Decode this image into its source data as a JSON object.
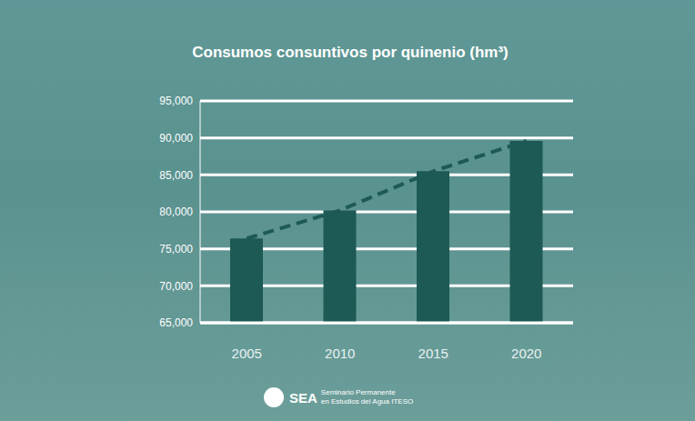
{
  "chart_data": {
    "type": "bar",
    "title": "Consumos consuntivos por quinenio (hm³)",
    "categories": [
      "2005",
      "2010",
      "2015",
      "2020"
    ],
    "series": [
      {
        "type": "bar",
        "color": "#1d5a55",
        "values": [
          76400,
          80200,
          85500,
          89600
        ]
      },
      {
        "type": "line",
        "line_style": "dashed",
        "color": "#1d5a55",
        "values": [
          76400,
          80200,
          85500,
          89600
        ]
      }
    ],
    "ylim": [
      65000,
      95000
    ],
    "yticks": [
      {
        "value": 65000,
        "label": "65,000"
      },
      {
        "value": 70000,
        "label": "70,000"
      },
      {
        "value": 75000,
        "label": "75,000"
      },
      {
        "value": 80000,
        "label": "80,000"
      },
      {
        "value": 85000,
        "label": "85,000"
      },
      {
        "value": 90000,
        "label": "90,000"
      },
      {
        "value": 95000,
        "label": "95,000"
      }
    ],
    "grid": true
  },
  "footer": {
    "logo": "SEA",
    "lines": [
      "Seminario Permanente",
      "en Estudios del Agua ITESO"
    ]
  }
}
